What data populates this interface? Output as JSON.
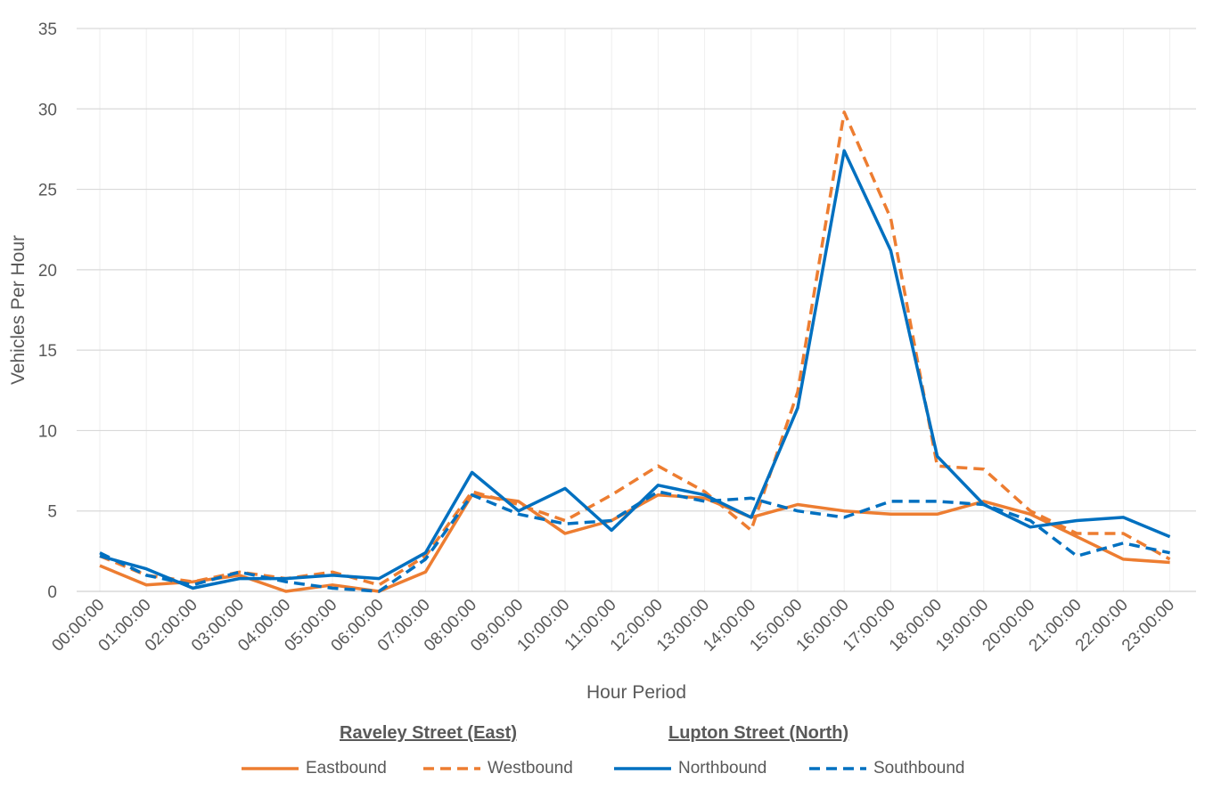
{
  "chart_data": {
    "type": "line",
    "title": "",
    "xlabel": "Hour Period",
    "ylabel": "Vehicles Per Hour",
    "ylim": [
      0,
      35
    ],
    "yticks": [
      0,
      5,
      10,
      15,
      20,
      25,
      30,
      35
    ],
    "grid": true,
    "legend_position": "bottom",
    "categories": [
      "00:00:00",
      "01:00:00",
      "02:00:00",
      "03:00:00",
      "04:00:00",
      "05:00:00",
      "06:00:00",
      "07:00:00",
      "08:00:00",
      "09:00:00",
      "10:00:00",
      "11:00:00",
      "12:00:00",
      "13:00:00",
      "14:00:00",
      "15:00:00",
      "16:00:00",
      "17:00:00",
      "18:00:00",
      "19:00:00",
      "20:00:00",
      "21:00:00",
      "22:00:00",
      "23:00:00"
    ],
    "legend_groups": [
      {
        "title": "Raveley Street (East)",
        "series": [
          "Eastbound",
          "Westbound"
        ]
      },
      {
        "title": "Lupton Street (North)",
        "series": [
          "Northbound",
          "Southbound"
        ]
      }
    ],
    "series": [
      {
        "name": "Eastbound",
        "color": "#ED7D31",
        "dash": "solid",
        "values": [
          1.6,
          0.4,
          0.6,
          1.0,
          0.0,
          0.4,
          0.0,
          1.2,
          6.0,
          5.6,
          3.6,
          4.4,
          6.0,
          5.8,
          4.6,
          5.4,
          5.0,
          4.8,
          4.8,
          5.6,
          4.8,
          3.4,
          2.0,
          1.8
        ]
      },
      {
        "name": "Westbound",
        "color": "#ED7D31",
        "dash": "dashed",
        "values": [
          2.2,
          1.0,
          0.6,
          1.2,
          0.8,
          1.2,
          0.4,
          2.2,
          6.2,
          5.4,
          4.4,
          6.0,
          7.8,
          6.2,
          3.8,
          12.4,
          29.8,
          23.2,
          7.8,
          7.6,
          5.0,
          3.6,
          3.6,
          2.0
        ]
      },
      {
        "name": "Northbound",
        "color": "#0070C0",
        "dash": "solid",
        "values": [
          2.2,
          1.4,
          0.2,
          0.8,
          0.8,
          1.0,
          0.8,
          2.4,
          7.4,
          5.0,
          6.4,
          3.8,
          6.6,
          6.0,
          4.6,
          11.4,
          27.4,
          21.2,
          8.4,
          5.4,
          4.0,
          4.4,
          4.6,
          3.4
        ]
      },
      {
        "name": "Southbound",
        "color": "#0070C0",
        "dash": "dashed",
        "values": [
          2.4,
          1.0,
          0.4,
          1.2,
          0.6,
          0.2,
          0.0,
          2.0,
          6.0,
          4.8,
          4.2,
          4.4,
          6.2,
          5.6,
          5.8,
          5.0,
          4.6,
          5.6,
          5.6,
          5.4,
          4.4,
          2.2,
          3.0,
          2.4
        ]
      }
    ]
  }
}
